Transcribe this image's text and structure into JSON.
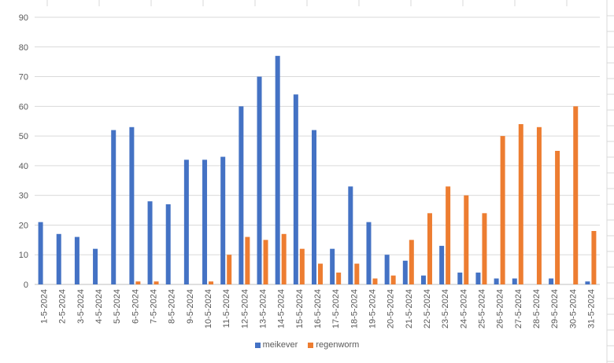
{
  "chart_data": {
    "type": "bar",
    "title": "",
    "xlabel": "",
    "ylabel": "",
    "ylim": [
      0,
      90
    ],
    "yticks": [
      0,
      10,
      20,
      30,
      40,
      50,
      60,
      70,
      80,
      90
    ],
    "grid": true,
    "legend_position": "bottom",
    "categories": [
      "1-5-2024",
      "2-5-2024",
      "3-5-2024",
      "4-5-2024",
      "5-5-2024",
      "6-5-2024",
      "7-5-2024",
      "8-5-2024",
      "9-5-2024",
      "10-5-2024",
      "11-5-2024",
      "12-5-2024",
      "13-5-2024",
      "14-5-2024",
      "15-5-2024",
      "16-5-2024",
      "17-5-2024",
      "18-5-2024",
      "19-5-2024",
      "20-5-2024",
      "21-5-2024",
      "22-5-2024",
      "23-5-2024",
      "24-5-2024",
      "25-5-2024",
      "26-5-2024",
      "27-5-2024",
      "28-5-2024",
      "29-5-2024",
      "30-5-2024",
      "31-5-2024"
    ],
    "series": [
      {
        "name": "meikever",
        "color": "#4472C4",
        "values": [
          21,
          17,
          16,
          12,
          52,
          53,
          28,
          27,
          42,
          42,
          43,
          60,
          70,
          77,
          64,
          52,
          12,
          33,
          21,
          10,
          8,
          3,
          13,
          4,
          4,
          2,
          2,
          0,
          2,
          0,
          1
        ]
      },
      {
        "name": "regenworm",
        "color": "#ED7D31",
        "values": [
          0,
          0,
          0,
          0,
          0,
          1,
          1,
          0,
          0,
          1,
          10,
          16,
          15,
          17,
          12,
          7,
          4,
          7,
          2,
          3,
          15,
          24,
          33,
          30,
          24,
          50,
          54,
          53,
          45,
          60,
          18
        ]
      }
    ]
  }
}
